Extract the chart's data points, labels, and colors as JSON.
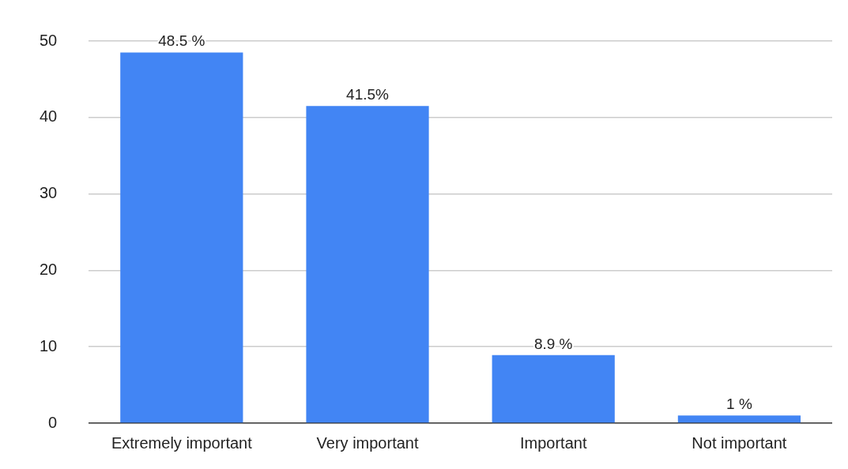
{
  "chart_data": {
    "type": "bar",
    "categories": [
      "Extremely important",
      "Very important",
      "Important",
      "Not important"
    ],
    "values": [
      48.5,
      41.5,
      8.9,
      1
    ],
    "value_labels": [
      "48.5 %",
      "41.5%",
      "8.9 %",
      "1 %"
    ],
    "color": "#4285f4",
    "ylim": [
      0,
      50
    ],
    "yticks": [
      0,
      10,
      20,
      30,
      40,
      50
    ],
    "grid": "y"
  }
}
